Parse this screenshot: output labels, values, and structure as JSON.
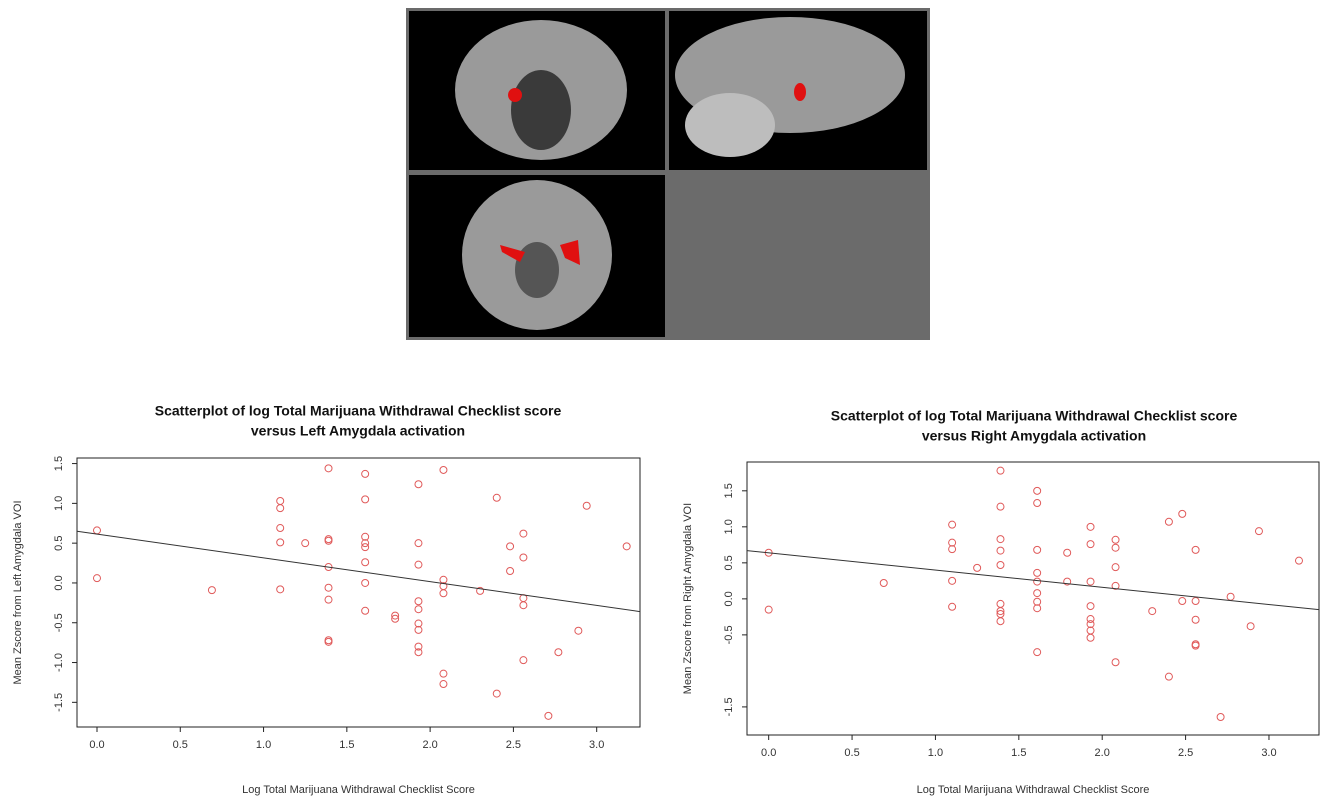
{
  "chart_data": [
    {
      "type": "scatter",
      "title": [
        "Scatterplot of log Total Marijuana Withdrawal Checklist score",
        "versus Left Amygdala activation"
      ],
      "x_label": "Log Total Marijuana Withdrawal Checklist Score",
      "y_label": "Mean Zscore from Left Amygdala VOI",
      "color": "#e05a5a",
      "xlim": [
        -0.12,
        3.26
      ],
      "ylim": [
        -1.81,
        1.57
      ],
      "xticks": [
        {
          "value": 0,
          "label": "0.0"
        },
        0.5,
        {
          "value": 1,
          "label": "1.0"
        },
        1.5,
        {
          "value": 2,
          "label": "2.0"
        },
        2.5,
        {
          "value": 3,
          "label": "3.0"
        }
      ],
      "yticks": [
        1.5,
        {
          "value": 1,
          "label": "1.0"
        },
        0.5,
        {
          "value": 0,
          "label": "0.0"
        },
        -0.5,
        {
          "value": -1,
          "label": "-1.0"
        },
        -1.5
      ],
      "fit": {
        "x": [
          -0.12,
          3.26
        ],
        "y": [
          0.65,
          -0.36
        ]
      },
      "x": [
        0.0,
        0.0,
        0.69,
        1.1,
        1.1,
        1.1,
        1.1,
        1.1,
        1.25,
        1.39,
        1.39,
        1.39,
        1.39,
        1.39,
        1.39,
        1.39,
        1.39,
        1.61,
        1.61,
        1.61,
        1.61,
        1.61,
        1.61,
        1.61,
        1.61,
        1.79,
        1.79,
        1.93,
        1.93,
        1.93,
        1.93,
        1.93,
        1.93,
        1.93,
        1.93,
        1.93,
        2.08,
        2.08,
        2.08,
        2.08,
        2.08,
        2.08,
        2.3,
        2.4,
        2.4,
        2.48,
        2.48,
        2.56,
        2.56,
        2.56,
        2.56,
        2.56,
        2.77,
        2.71,
        2.89,
        2.94,
        3.18
      ],
      "values": [
        0.66,
        0.06,
        -0.09,
        1.03,
        0.94,
        0.69,
        0.51,
        -0.08,
        0.5,
        1.44,
        0.55,
        0.53,
        0.2,
        -0.06,
        -0.21,
        -0.72,
        -0.74,
        1.37,
        1.05,
        0.58,
        0.5,
        0.45,
        0.26,
        0.0,
        -0.35,
        -0.41,
        -0.45,
        1.24,
        0.5,
        0.23,
        -0.23,
        -0.33,
        -0.51,
        -0.59,
        -0.8,
        -0.87,
        1.42,
        0.04,
        -0.04,
        -0.13,
        -1.14,
        -1.27,
        -0.1,
        1.07,
        -1.39,
        0.46,
        0.15,
        0.62,
        0.32,
        -0.19,
        -0.28,
        -0.97,
        -0.87,
        -1.67,
        -0.6,
        0.97,
        0.46
      ]
    },
    {
      "type": "scatter",
      "title": [
        "Scatterplot of log Total Marijuana Withdrawal Checklist score",
        "versus Right Amygdala activation"
      ],
      "x_label": "Log Total Marijuana Withdrawal Checklist Score",
      "y_label": "Mean Zscore from Right Amygdala VOI",
      "color": "#e05a5a",
      "xlim": [
        -0.13,
        3.3
      ],
      "ylim": [
        -1.89,
        1.9
      ],
      "xticks": [
        {
          "value": 0,
          "label": "0.0"
        },
        0.5,
        {
          "value": 1,
          "label": "1.0"
        },
        1.5,
        {
          "value": 2,
          "label": "2.0"
        },
        2.5,
        {
          "value": 3,
          "label": "3.0"
        }
      ],
      "yticks": [
        1.5,
        {
          "value": 1,
          "label": "1.0"
        },
        0.5,
        {
          "value": 0,
          "label": "0.0"
        },
        -0.5,
        -1.5
      ],
      "fit": {
        "x": [
          -0.13,
          3.3
        ],
        "y": [
          0.67,
          -0.15
        ]
      },
      "x": [
        0.0,
        0.0,
        0.69,
        1.1,
        1.1,
        1.1,
        1.1,
        1.1,
        1.25,
        1.39,
        1.39,
        1.39,
        1.39,
        1.39,
        1.39,
        1.39,
        1.39,
        1.39,
        1.61,
        1.61,
        1.61,
        1.61,
        1.61,
        1.61,
        1.61,
        1.61,
        1.61,
        1.79,
        1.79,
        1.93,
        1.93,
        1.93,
        1.93,
        1.93,
        1.93,
        1.93,
        1.93,
        2.08,
        2.08,
        2.08,
        2.08,
        2.08,
        2.3,
        2.4,
        2.4,
        2.48,
        2.48,
        2.56,
        2.56,
        2.56,
        2.56,
        2.56,
        2.77,
        2.71,
        2.89,
        2.94,
        3.18
      ],
      "values": [
        0.64,
        -0.15,
        0.22,
        1.03,
        0.78,
        0.69,
        0.25,
        -0.11,
        0.43,
        1.78,
        1.28,
        0.83,
        0.67,
        0.47,
        -0.07,
        -0.17,
        -0.21,
        -0.31,
        1.5,
        1.33,
        0.68,
        0.36,
        0.24,
        0.08,
        -0.04,
        -0.13,
        -0.74,
        0.64,
        0.24,
        1.0,
        0.76,
        0.24,
        -0.1,
        -0.28,
        -0.35,
        -0.44,
        -0.54,
        0.82,
        0.71,
        0.44,
        0.18,
        -0.88,
        -0.17,
        1.07,
        -1.08,
        1.18,
        -0.03,
        0.68,
        -0.03,
        -0.29,
        -0.63,
        -0.65,
        0.03,
        -1.64,
        -0.38,
        0.94,
        0.53
      ]
    }
  ]
}
